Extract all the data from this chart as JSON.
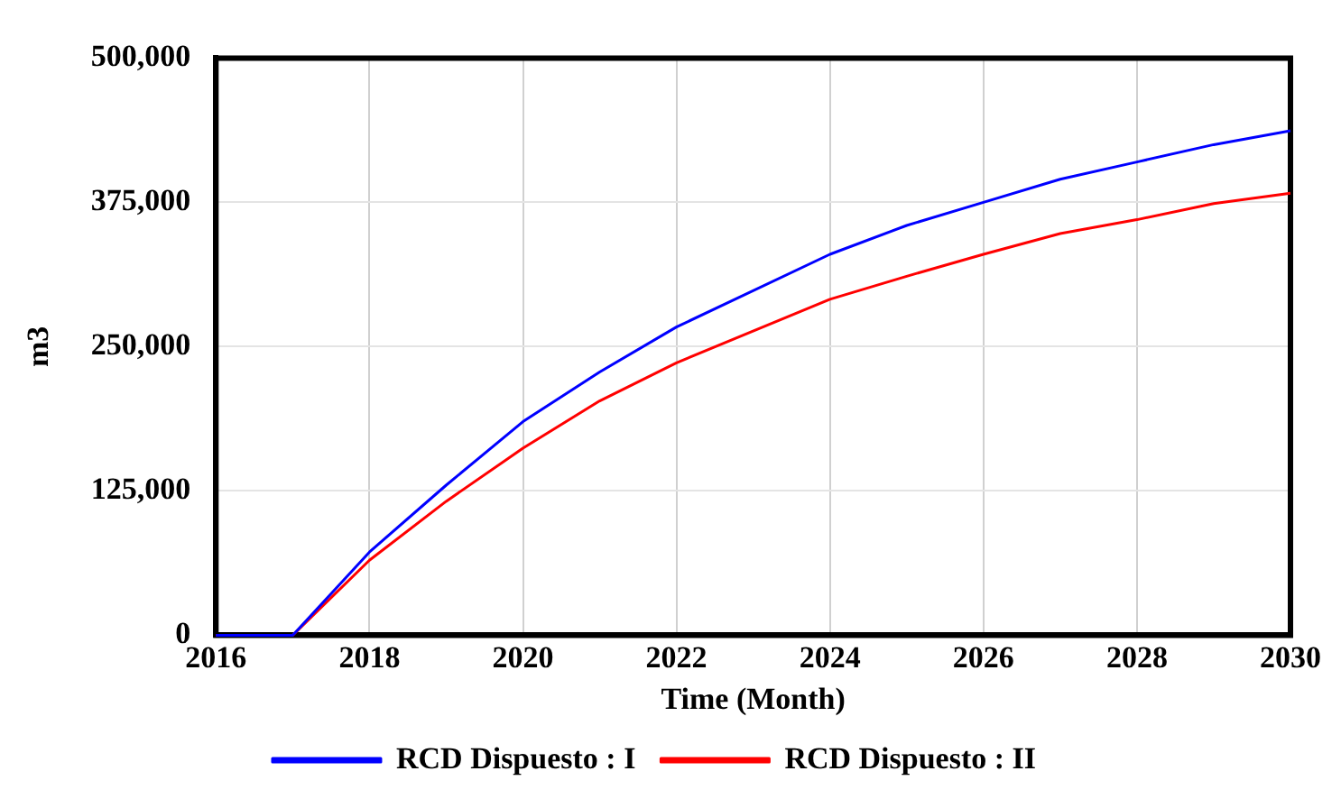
{
  "chart_data": {
    "type": "line",
    "xlabel": "Time (Month)",
    "ylabel": "m3",
    "x": [
      2016,
      2017,
      2018,
      2019,
      2020,
      2021,
      2022,
      2024,
      2025,
      2026,
      2027,
      2028,
      2029,
      2030
    ],
    "series": [
      {
        "name": "RCD Dispuesto : I",
        "color": "#0000ff",
        "values": [
          0,
          0,
          72000,
          130000,
          185000,
          228000,
          267000,
          330000,
          355000,
          375000,
          395000,
          410000,
          425000,
          437000
        ]
      },
      {
        "name": "RCD Dispuesto : II",
        "color": "#ff0000",
        "values": [
          0,
          0,
          65000,
          116000,
          162000,
          203000,
          236000,
          291000,
          311000,
          330000,
          348000,
          360000,
          374000,
          383000
        ]
      }
    ],
    "xlim": [
      2016,
      2030
    ],
    "xticks": [
      2016,
      2018,
      2020,
      2022,
      2024,
      2026,
      2028,
      2030
    ],
    "ylim": [
      0,
      500000
    ],
    "yticks": [
      {
        "value": 0,
        "label": "0"
      },
      {
        "value": 125000,
        "label": "125,000"
      },
      {
        "value": 250000,
        "label": "250,000"
      },
      {
        "value": 375000,
        "label": "375,000"
      },
      {
        "value": 500000,
        "label": "500,000"
      }
    ],
    "grid": true,
    "legend": "bottom",
    "marker": "none",
    "line_style": "solid"
  }
}
